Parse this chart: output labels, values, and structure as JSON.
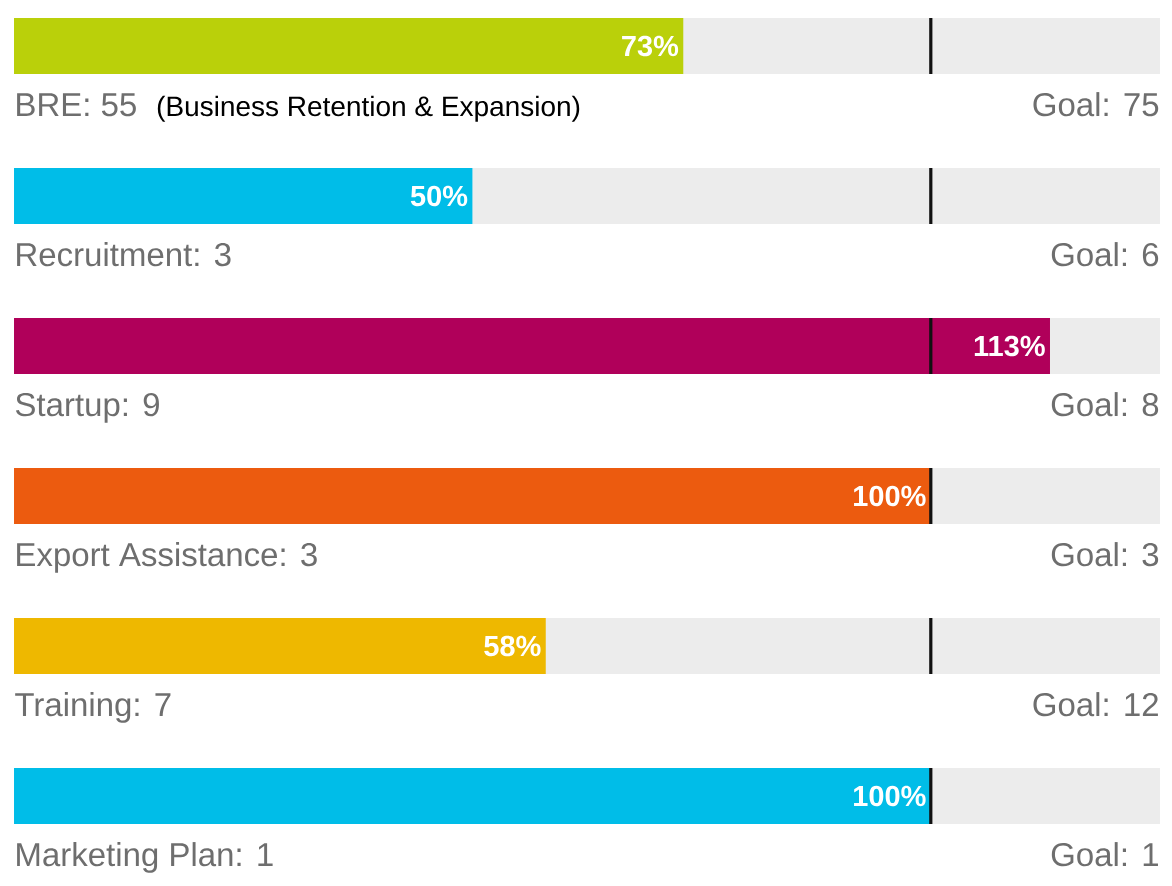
{
  "chart_data": {
    "type": "bar",
    "orientation": "horizontal",
    "tick_labels": false,
    "categories": [
      "BRE: 55",
      "Recruitment: 3",
      "Startup: 9",
      "Export Assistance: 3",
      "Training: 7",
      "Marketing Plan: 1"
    ],
    "series": [
      {
        "values": [
          73,
          50,
          113,
          100,
          58,
          100
        ],
        "value_labels": [
          "73%",
          "50%",
          "113%",
          "100%",
          "58%",
          "100%"
        ],
        "colors": [
          "#bad00a",
          "#00bde8",
          "#b0005a",
          "#ec5b0f",
          "#eeb800",
          "#00bde8"
        ]
      }
    ],
    "xlim": [
      0,
      125
    ],
    "ref_lines": [
      {
        "axis": "x",
        "value": 100,
        "color": "#111111",
        "line_style": "dashed"
      }
    ],
    "annotations": [
      "(Business Retention & Expansion)",
      "Goal: 75",
      "Goal: 6",
      "Goal: 8",
      "Goal: 3",
      "Goal: 12",
      "Goal: 1"
    ]
  }
}
